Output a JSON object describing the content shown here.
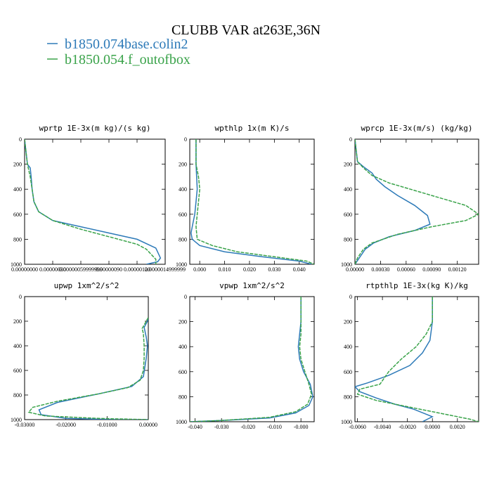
{
  "figure": {
    "title": "CLUBB VAR at263E,36N",
    "legend": [
      {
        "label": "b1850.074base.colin2",
        "color": "#2d7ab8"
      },
      {
        "label": "b1850.054.f_outofbox",
        "color": "#3aa34a"
      }
    ]
  },
  "chart_data": [
    {
      "type": "line",
      "title": "wprtp  1E-3x(m kg)/(s kg)",
      "xlim": [
        0,
        1.5e-06
      ],
      "ylim": [
        0,
        1000
      ],
      "y_inverted": true,
      "xticks": [
        0,
        3e-07,
        6e-07,
        9e-07,
        1.2e-06,
        1.5e-06
      ],
      "xtick_labels": [
        "0.00000000",
        "0.00000030",
        "0.00000059999999",
        "0.00000090",
        "0.00000120",
        "0.0000014999999"
      ],
      "yticks": [
        0,
        200,
        400,
        600,
        800,
        1000
      ],
      "series": [
        {
          "name": "b1850.074base.colin2",
          "color": "#2d7ab8",
          "x": [
            0,
            3e-08,
            6e-08,
            7e-08,
            8e-08,
            1e-07,
            1.5e-07,
            3e-07,
            6e-07,
            9e-07,
            1.2e-06,
            1.4e-06,
            1.45e-06,
            1.42e-06,
            1.3e-06
          ],
          "y": [
            0,
            200,
            230,
            300,
            400,
            500,
            580,
            650,
            700,
            750,
            800,
            870,
            950,
            980,
            1000
          ]
        },
        {
          "name": "b1850.054.f_outofbox",
          "color": "#3aa34a",
          "x": [
            0,
            3e-08,
            6e-08,
            8e-08,
            1e-07,
            1.5e-07,
            3e-07,
            6e-07,
            9e-07,
            1.2e-06,
            1.3e-06,
            1.35e-06,
            1.4e-06,
            1.4e-06
          ],
          "y": [
            0,
            200,
            300,
            400,
            500,
            580,
            650,
            720,
            780,
            840,
            880,
            920,
            960,
            1000
          ]
        }
      ]
    },
    {
      "type": "line",
      "title": "wpthlp  1x(m K)/s",
      "xlim": [
        -0.004,
        0.046
      ],
      "ylim": [
        0,
        1000
      ],
      "y_inverted": true,
      "xticks": [
        0,
        0.01,
        0.02,
        0.03,
        0.04
      ],
      "xtick_labels": [
        "0.000",
        "0.010",
        "0.020",
        "0.030",
        "0.040"
      ],
      "yticks": [
        0,
        200,
        400,
        600,
        800,
        1000
      ],
      "series": [
        {
          "name": "b1850.074base.colin2",
          "color": "#2d7ab8",
          "x": [
            -0.0015,
            -0.0015,
            -0.001,
            -0.0015,
            -0.002,
            -0.003,
            -0.0035,
            -0.003,
            0.0,
            0.01,
            0.025,
            0.04,
            0.045
          ],
          "y": [
            0,
            200,
            400,
            500,
            600,
            700,
            750,
            800,
            850,
            900,
            940,
            975,
            1000
          ]
        },
        {
          "name": "b1850.054.f_outofbox",
          "color": "#3aa34a",
          "x": [
            -0.0015,
            -0.0015,
            -0.0005,
            0.0,
            -0.0005,
            -0.001,
            -0.0015,
            -0.001,
            0.005,
            0.015,
            0.03,
            0.043,
            0.046
          ],
          "y": [
            0,
            200,
            300,
            400,
            500,
            600,
            700,
            800,
            850,
            900,
            940,
            975,
            1000
          ]
        }
      ]
    },
    {
      "type": "line",
      "title": "wprcp  1E-3x(m/s) (kg/kg)",
      "xlim": [
        0,
        0.00145
      ],
      "ylim": [
        0,
        1000
      ],
      "y_inverted": true,
      "xticks": [
        0,
        0.0003,
        0.0006,
        0.0009,
        0.0012
      ],
      "xtick_labels": [
        "0.00000",
        "0.00030",
        "0.00060",
        "0.00090",
        "0.00120"
      ],
      "yticks": [
        0,
        200,
        400,
        600,
        800,
        1000
      ],
      "series": [
        {
          "name": "b1850.074base.colin2",
          "color": "#2d7ab8",
          "x": [
            0,
            3e-05,
            0.0001,
            0.0002,
            0.00025,
            0.00035,
            0.0005,
            0.0007,
            0.00085,
            0.00088,
            0.0007,
            0.0004,
            0.00022,
            0.00012,
            5e-05,
            0.0
          ],
          "y": [
            0,
            180,
            220,
            270,
            320,
            380,
            450,
            530,
            610,
            680,
            730,
            780,
            830,
            880,
            950,
            1000
          ]
        },
        {
          "name": "b1850.054.f_outofbox",
          "color": "#3aa34a",
          "x": [
            0,
            3e-05,
            0.0001,
            0.0002,
            0.0004,
            0.0007,
            0.001,
            0.0013,
            0.00145,
            0.0013,
            0.0009,
            0.0005,
            0.0002,
            0.0001,
            3e-05,
            0.0
          ],
          "y": [
            0,
            180,
            230,
            290,
            350,
            410,
            470,
            530,
            600,
            650,
            700,
            760,
            830,
            880,
            950,
            1000
          ]
        }
      ]
    },
    {
      "type": "line",
      "title": "upwp  1xm^2/s^2",
      "xlim": [
        -0.03,
        0
      ],
      "ylim": [
        0,
        1000
      ],
      "y_inverted": true,
      "xticks": [
        -0.03,
        -0.02,
        -0.01,
        0
      ],
      "xtick_labels": [
        "-0.03000",
        "-0.02000",
        "-0.01000",
        "0.00000"
      ],
      "yticks": [
        0,
        200,
        400,
        600,
        800,
        1000
      ],
      "series": [
        {
          "name": "b1850.074base.colin2",
          "color": "#2d7ab8",
          "x": [
            0,
            -0.0002,
            -0.001,
            -0.0005,
            -0.0002,
            -0.0005,
            -0.0012,
            -0.004,
            -0.012,
            -0.022,
            -0.0265,
            -0.026,
            -0.02,
            -0.008,
            0
          ],
          "y": [
            170,
            200,
            250,
            330,
            400,
            500,
            650,
            730,
            790,
            860,
            920,
            960,
            990,
            1000,
            1000
          ]
        },
        {
          "name": "b1850.054.f_outofbox",
          "color": "#3aa34a",
          "x": [
            0,
            -0.0005,
            -0.0015,
            -0.0012,
            -0.001,
            -0.001,
            -0.0012,
            -0.002,
            -0.005,
            -0.012,
            -0.022,
            -0.028,
            -0.029,
            -0.025,
            -0.012,
            0
          ],
          "y": [
            170,
            200,
            260,
            300,
            400,
            500,
            600,
            680,
            740,
            790,
            850,
            900,
            940,
            970,
            990,
            1000
          ]
        }
      ]
    },
    {
      "type": "line",
      "title": "vpwp  1xm^2/s^2",
      "xlim": [
        -0.042,
        0.005
      ],
      "ylim": [
        0,
        1000
      ],
      "y_inverted": true,
      "xticks": [
        -0.04,
        -0.03,
        -0.02,
        -0.01,
        0
      ],
      "xtick_labels": [
        "-0.040",
        "-0.030",
        "-0.020",
        "-0.010",
        "-0.000"
      ],
      "yticks": [
        0,
        200,
        400,
        600,
        800,
        1000
      ],
      "series": [
        {
          "name": "b1850.074base.colin2",
          "color": "#2d7ab8",
          "x": [
            0,
            0,
            -0.0005,
            -0.001,
            -0.0005,
            0.001,
            0.0035,
            0.0045,
            0.003,
            -0.002,
            -0.012,
            -0.03,
            -0.042
          ],
          "y": [
            0,
            200,
            300,
            400,
            500,
            600,
            700,
            800,
            870,
            930,
            970,
            990,
            1000
          ]
        },
        {
          "name": "b1850.054.f_outofbox",
          "color": "#3aa34a",
          "x": [
            0,
            0,
            0.0,
            -0.0005,
            0.0,
            0.0015,
            0.003,
            0.004,
            0.0025,
            -0.002,
            -0.012,
            -0.03,
            -0.042
          ],
          "y": [
            0,
            200,
            300,
            400,
            500,
            600,
            700,
            780,
            860,
            920,
            965,
            990,
            1000
          ]
        }
      ]
    },
    {
      "type": "line",
      "title": "rtpthlp  1E-3x(kg K)/kg",
      "xlim": [
        -0.0062,
        0.0037
      ],
      "ylim": [
        0,
        1000
      ],
      "y_inverted": true,
      "xticks": [
        -0.006,
        -0.004,
        -0.002,
        0,
        0.002
      ],
      "xtick_labels": [
        "-0.0060",
        "-0.0040",
        "-0.0020",
        "0.0000",
        "0.0020"
      ],
      "yticks": [
        0,
        200,
        400,
        600,
        800,
        1000
      ],
      "series": [
        {
          "name": "b1850.074base.colin2",
          "color": "#2d7ab8",
          "x": [
            0,
            0,
            -0.0002,
            -0.0008,
            -0.0018,
            -0.0035,
            -0.0052,
            -0.0062,
            -0.0058,
            -0.0045,
            -0.003,
            -0.0015,
            -0.0005,
            0.0,
            -0.0003,
            -0.0008
          ],
          "y": [
            0,
            200,
            350,
            450,
            550,
            630,
            690,
            720,
            760,
            810,
            860,
            900,
            940,
            960,
            975,
            1000
          ]
        },
        {
          "name": "b1850.054.f_outofbox",
          "color": "#3aa34a",
          "x": [
            0,
            0,
            -0.0005,
            -0.0013,
            -0.0025,
            -0.0035,
            -0.0042,
            -0.0058,
            -0.006,
            -0.0045,
            -0.002,
            0.0005,
            0.003,
            0.0037
          ],
          "y": [
            0,
            200,
            300,
            400,
            500,
            600,
            700,
            740,
            780,
            830,
            880,
            930,
            980,
            1000
          ]
        }
      ]
    }
  ]
}
